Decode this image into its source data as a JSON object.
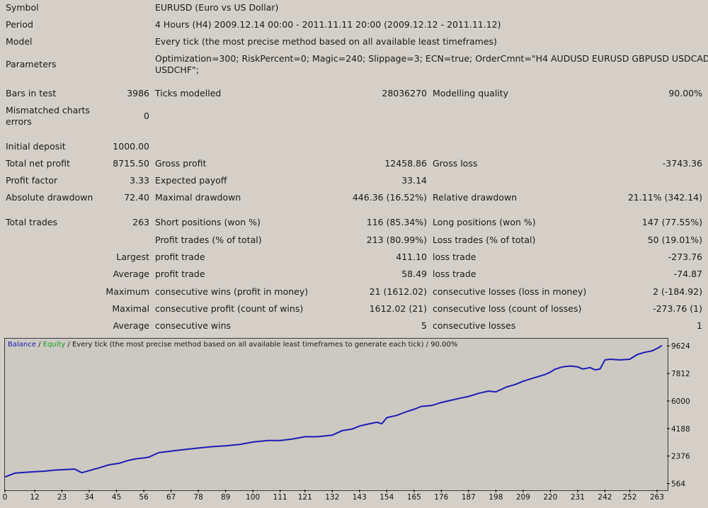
{
  "report": {
    "symbol": {
      "label": "Symbol",
      "value": "EURUSD (Euro vs US Dollar)"
    },
    "period": {
      "label": "Period",
      "value": "4 Hours (H4) 2009.12.14 00:00 - 2011.11.11 20:00 (2009.12.12 - 2011.11.12)"
    },
    "model": {
      "label": "Model",
      "value": "Every tick (the most precise method based on all available least timeframes)"
    },
    "parameters": {
      "label": "Parameters",
      "line1": "Optimization=300; RiskPercent=0; Magic=240; Slippage=3; ECN=true; OrderCmnt=\"H4 AUDUSD EURUSD GBPUSD USDCAD",
      "line2": "USDCHF\";"
    },
    "bars_in_test": {
      "label": "Bars in test",
      "value": "3986"
    },
    "ticks_modelled": {
      "label": "Ticks modelled",
      "value": "28036270"
    },
    "modelling_quality": {
      "label": "Modelling quality",
      "value": "90.00%"
    },
    "mismatched": {
      "label1": "Mismatched charts",
      "label2": "errors",
      "value": "0"
    },
    "initial_deposit": {
      "label": "Initial deposit",
      "value": "1000.00"
    },
    "total_net_profit": {
      "label": "Total net profit",
      "value": "8715.50"
    },
    "gross_profit": {
      "label": "Gross profit",
      "value": "12458.86"
    },
    "gross_loss": {
      "label": "Gross loss",
      "value": "-3743.36"
    },
    "profit_factor": {
      "label": "Profit factor",
      "value": "3.33"
    },
    "expected_payoff": {
      "label": "Expected payoff",
      "value": "33.14"
    },
    "absolute_drawdown": {
      "label": "Absolute drawdown",
      "value": "72.40"
    },
    "maximal_drawdown": {
      "label": "Maximal drawdown",
      "value": "446.36 (16.52%)"
    },
    "relative_drawdown": {
      "label": "Relative drawdown",
      "value": "21.11% (342.14)"
    },
    "total_trades": {
      "label": "Total trades",
      "value": "263"
    },
    "short_positions": {
      "label": "Short positions (won %)",
      "value": "116 (85.34%)"
    },
    "long_positions": {
      "label": "Long positions (won %)",
      "value": "147 (77.55%)"
    },
    "profit_trades": {
      "label": "Profit trades (% of total)",
      "value": "213 (80.99%)"
    },
    "loss_trades": {
      "label": "Loss trades (% of total)",
      "value": "50 (19.01%)"
    },
    "largest": {
      "prefix": "Largest",
      "profit_label": "profit trade",
      "profit_value": "411.10",
      "loss_label": "loss trade",
      "loss_value": "-273.76"
    },
    "average": {
      "prefix": "Average",
      "profit_label": "profit trade",
      "profit_value": "58.49",
      "loss_label": "loss trade",
      "loss_value": "-74.87"
    },
    "maximum_consec": {
      "prefix": "Maximum",
      "wins_label": "consecutive wins (profit in money)",
      "wins_value": "21 (1612.02)",
      "losses_label": "consecutive losses (loss in money)",
      "losses_value": "2 (-184.92)"
    },
    "maximal_consec": {
      "prefix": "Maximal",
      "profit_label": "consecutive profit (count of wins)",
      "profit_value": "1612.02 (21)",
      "loss_label": "consecutive loss (count of losses)",
      "loss_value": "-273.76 (1)"
    },
    "average_consec": {
      "prefix": "Average",
      "wins_label": "consecutive wins",
      "wins_value": "5",
      "losses_label": "consecutive losses",
      "losses_value": "1"
    }
  },
  "chart_data": {
    "type": "line",
    "caption": {
      "balance": "Balance",
      "sep1": " / ",
      "equity": "Equity",
      "rest": " / Every tick (the most precise method based on all available least timeframes to generate each tick) / 90.00%"
    },
    "colors": {
      "balance": "#1c1cb4",
      "equity": "#1e9e1e",
      "axis": "#000000"
    },
    "x_ticks": [
      0,
      12,
      23,
      34,
      45,
      56,
      67,
      78,
      89,
      100,
      111,
      121,
      132,
      143,
      154,
      165,
      176,
      187,
      198,
      209,
      220,
      231,
      242,
      252,
      263
    ],
    "y_ticks": [
      564,
      2376,
      4188,
      6000,
      7812,
      9624
    ],
    "xlim": [
      0,
      267
    ],
    "ylim": [
      170,
      10100
    ],
    "series": [
      {
        "name": "Balance",
        "x": [
          0,
          4,
          8,
          12,
          16,
          20,
          24,
          28,
          31,
          34,
          38,
          42,
          46,
          50,
          53,
          56,
          58,
          62,
          67,
          72,
          78,
          84,
          89,
          95,
          100,
          106,
          111,
          116,
          121,
          126,
          132,
          136,
          140,
          143,
          147,
          150,
          152,
          154,
          158,
          162,
          165,
          168,
          172,
          176,
          180,
          184,
          187,
          191,
          195,
          198,
          202,
          206,
          209,
          212,
          215,
          218,
          220,
          222,
          225,
          228,
          231,
          233,
          236,
          238,
          240,
          242,
          244,
          248,
          252,
          255,
          258,
          261,
          263,
          265
        ],
        "y": [
          1000,
          1250,
          1300,
          1350,
          1380,
          1450,
          1480,
          1520,
          1280,
          1420,
          1600,
          1800,
          1900,
          2100,
          2200,
          2250,
          2300,
          2600,
          2700,
          2800,
          2900,
          3000,
          3050,
          3150,
          3300,
          3400,
          3400,
          3500,
          3650,
          3650,
          3750,
          4050,
          4150,
          4350,
          4500,
          4600,
          4500,
          4900,
          5050,
          5300,
          5450,
          5650,
          5700,
          5900,
          6050,
          6200,
          6300,
          6500,
          6650,
          6600,
          6900,
          7100,
          7300,
          7450,
          7600,
          7750,
          7900,
          8100,
          8250,
          8300,
          8250,
          8100,
          8200,
          8050,
          8100,
          8700,
          8750,
          8700,
          8750,
          9050,
          9200,
          9300,
          9450,
          9650
        ]
      }
    ]
  }
}
